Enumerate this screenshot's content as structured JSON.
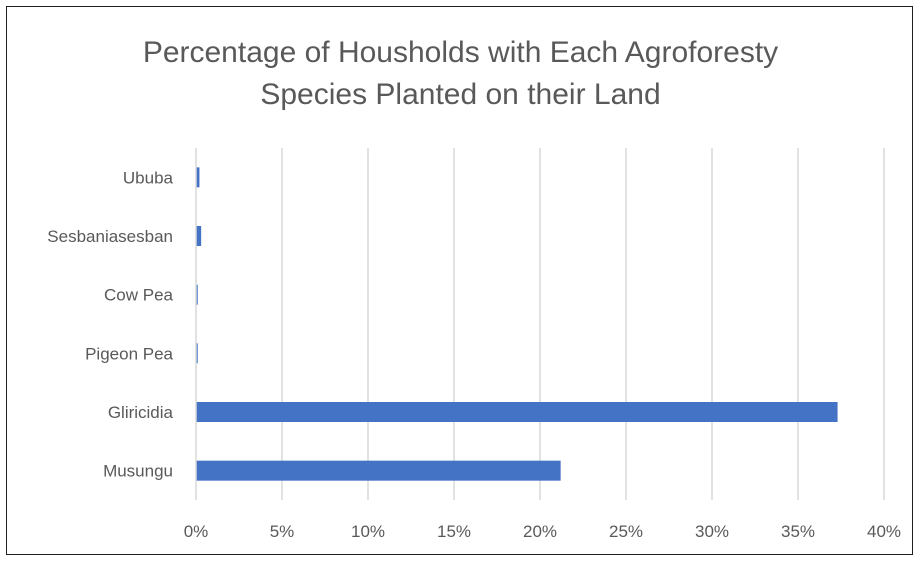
{
  "chart_data": {
    "type": "bar",
    "orientation": "horizontal",
    "title_lines": [
      "Percentage of Housholds with Each Agroforesty",
      "Species Planted on their Land"
    ],
    "categories": [
      "Ububa",
      "Sesbaniasesban",
      "Cow Pea",
      "Pigeon Pea",
      "Gliricidia",
      "Musungu"
    ],
    "values": [
      0.2,
      0.3,
      0.1,
      0.1,
      37.3,
      21.2
    ],
    "xlim": [
      0,
      40
    ],
    "x_ticks": [
      0,
      5,
      10,
      15,
      20,
      25,
      30,
      35,
      40
    ],
    "x_tick_labels": [
      "0%",
      "5%",
      "10%",
      "15%",
      "20%",
      "25%",
      "30%",
      "35%",
      "40%"
    ],
    "grid": true,
    "legend": "none",
    "bar_color": "#4472C4",
    "gridline_color": "#d9d9d9",
    "text_color": "#595959"
  }
}
